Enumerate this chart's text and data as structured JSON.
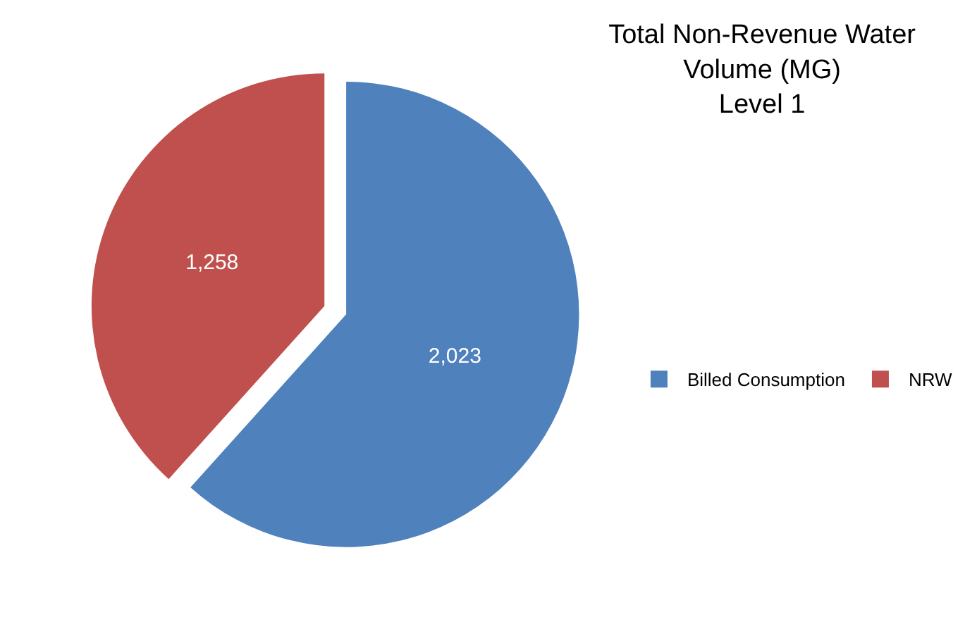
{
  "chart_data": {
    "type": "pie",
    "title": "Total Non-Revenue Water\nVolume (MG)\nLevel 1",
    "categories": [
      "Billed Consumption",
      "NRW"
    ],
    "values": [
      2023,
      1258
    ],
    "colors": [
      "#4f81bd",
      "#c0504d"
    ],
    "value_labels": [
      "2,023",
      "1,258"
    ],
    "legend": "right"
  }
}
